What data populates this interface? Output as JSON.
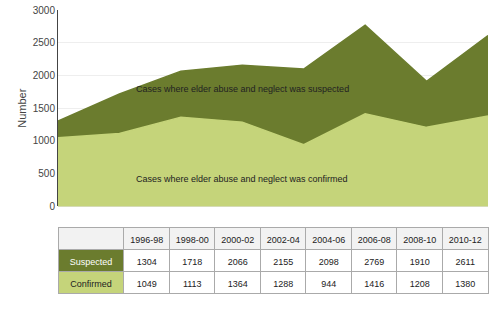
{
  "chart_data": {
    "type": "area",
    "categories": [
      "1996-98",
      "1998-00",
      "2000-02",
      "2002-04",
      "2004-06",
      "2006-08",
      "2008-10",
      "2010-12"
    ],
    "series": [
      {
        "name": "Suspected",
        "color": "#6b7c2e",
        "values": [
          1304,
          1718,
          2066,
          2155,
          2098,
          2769,
          1910,
          2611
        ]
      },
      {
        "name": "Confirmed",
        "color": "#c5d47a",
        "values": [
          1049,
          1113,
          1364,
          1288,
          944,
          1416,
          1208,
          1380
        ]
      }
    ],
    "ylabel": "Number",
    "annotations": [
      "Cases where elder abuse and neglect was suspected",
      "Cases where elder abuse and neglect was confirmed"
    ],
    "ylim": [
      0,
      3000
    ],
    "yticks": [
      0,
      500,
      1000,
      1500,
      2000,
      2500,
      3000
    ],
    "grid": true,
    "stacked": false,
    "data_labels": true,
    "tick_labels": "y"
  }
}
